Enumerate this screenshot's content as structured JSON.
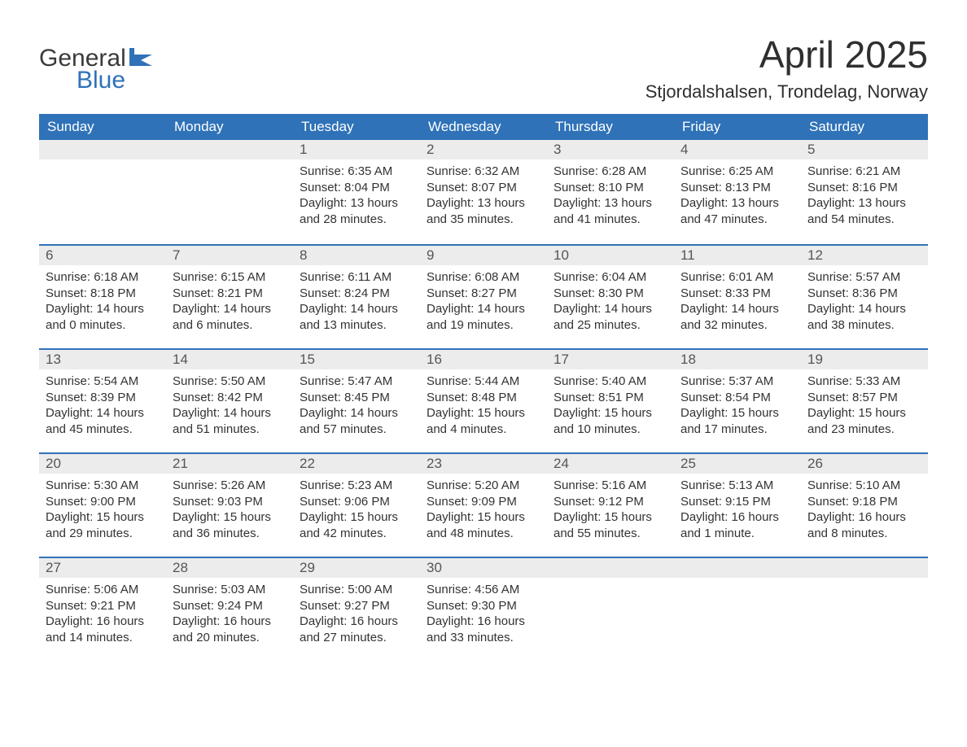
{
  "brand": {
    "word1": "General",
    "word2": "Blue",
    "logo_color": "#2f72b8"
  },
  "title": "April 2025",
  "location": "Stjordalshalsen, Trondelag, Norway",
  "colors": {
    "header_bg": "#2f72b8",
    "header_text": "#ffffff",
    "daynum_bg": "#ececec",
    "body_text": "#333333",
    "week_divider": "#2f72b8"
  },
  "typography": {
    "title_fontsize": 46,
    "location_fontsize": 22,
    "dow_fontsize": 17,
    "body_fontsize": 15
  },
  "days_of_week": [
    "Sunday",
    "Monday",
    "Tuesday",
    "Wednesday",
    "Thursday",
    "Friday",
    "Saturday"
  ],
  "weeks": [
    [
      null,
      null,
      {
        "n": "1",
        "sunrise": "Sunrise: 6:35 AM",
        "sunset": "Sunset: 8:04 PM",
        "daylight": "Daylight: 13 hours and 28 minutes."
      },
      {
        "n": "2",
        "sunrise": "Sunrise: 6:32 AM",
        "sunset": "Sunset: 8:07 PM",
        "daylight": "Daylight: 13 hours and 35 minutes."
      },
      {
        "n": "3",
        "sunrise": "Sunrise: 6:28 AM",
        "sunset": "Sunset: 8:10 PM",
        "daylight": "Daylight: 13 hours and 41 minutes."
      },
      {
        "n": "4",
        "sunrise": "Sunrise: 6:25 AM",
        "sunset": "Sunset: 8:13 PM",
        "daylight": "Daylight: 13 hours and 47 minutes."
      },
      {
        "n": "5",
        "sunrise": "Sunrise: 6:21 AM",
        "sunset": "Sunset: 8:16 PM",
        "daylight": "Daylight: 13 hours and 54 minutes."
      }
    ],
    [
      {
        "n": "6",
        "sunrise": "Sunrise: 6:18 AM",
        "sunset": "Sunset: 8:18 PM",
        "daylight": "Daylight: 14 hours and 0 minutes."
      },
      {
        "n": "7",
        "sunrise": "Sunrise: 6:15 AM",
        "sunset": "Sunset: 8:21 PM",
        "daylight": "Daylight: 14 hours and 6 minutes."
      },
      {
        "n": "8",
        "sunrise": "Sunrise: 6:11 AM",
        "sunset": "Sunset: 8:24 PM",
        "daylight": "Daylight: 14 hours and 13 minutes."
      },
      {
        "n": "9",
        "sunrise": "Sunrise: 6:08 AM",
        "sunset": "Sunset: 8:27 PM",
        "daylight": "Daylight: 14 hours and 19 minutes."
      },
      {
        "n": "10",
        "sunrise": "Sunrise: 6:04 AM",
        "sunset": "Sunset: 8:30 PM",
        "daylight": "Daylight: 14 hours and 25 minutes."
      },
      {
        "n": "11",
        "sunrise": "Sunrise: 6:01 AM",
        "sunset": "Sunset: 8:33 PM",
        "daylight": "Daylight: 14 hours and 32 minutes."
      },
      {
        "n": "12",
        "sunrise": "Sunrise: 5:57 AM",
        "sunset": "Sunset: 8:36 PM",
        "daylight": "Daylight: 14 hours and 38 minutes."
      }
    ],
    [
      {
        "n": "13",
        "sunrise": "Sunrise: 5:54 AM",
        "sunset": "Sunset: 8:39 PM",
        "daylight": "Daylight: 14 hours and 45 minutes."
      },
      {
        "n": "14",
        "sunrise": "Sunrise: 5:50 AM",
        "sunset": "Sunset: 8:42 PM",
        "daylight": "Daylight: 14 hours and 51 minutes."
      },
      {
        "n": "15",
        "sunrise": "Sunrise: 5:47 AM",
        "sunset": "Sunset: 8:45 PM",
        "daylight": "Daylight: 14 hours and 57 minutes."
      },
      {
        "n": "16",
        "sunrise": "Sunrise: 5:44 AM",
        "sunset": "Sunset: 8:48 PM",
        "daylight": "Daylight: 15 hours and 4 minutes."
      },
      {
        "n": "17",
        "sunrise": "Sunrise: 5:40 AM",
        "sunset": "Sunset: 8:51 PM",
        "daylight": "Daylight: 15 hours and 10 minutes."
      },
      {
        "n": "18",
        "sunrise": "Sunrise: 5:37 AM",
        "sunset": "Sunset: 8:54 PM",
        "daylight": "Daylight: 15 hours and 17 minutes."
      },
      {
        "n": "19",
        "sunrise": "Sunrise: 5:33 AM",
        "sunset": "Sunset: 8:57 PM",
        "daylight": "Daylight: 15 hours and 23 minutes."
      }
    ],
    [
      {
        "n": "20",
        "sunrise": "Sunrise: 5:30 AM",
        "sunset": "Sunset: 9:00 PM",
        "daylight": "Daylight: 15 hours and 29 minutes."
      },
      {
        "n": "21",
        "sunrise": "Sunrise: 5:26 AM",
        "sunset": "Sunset: 9:03 PM",
        "daylight": "Daylight: 15 hours and 36 minutes."
      },
      {
        "n": "22",
        "sunrise": "Sunrise: 5:23 AM",
        "sunset": "Sunset: 9:06 PM",
        "daylight": "Daylight: 15 hours and 42 minutes."
      },
      {
        "n": "23",
        "sunrise": "Sunrise: 5:20 AM",
        "sunset": "Sunset: 9:09 PM",
        "daylight": "Daylight: 15 hours and 48 minutes."
      },
      {
        "n": "24",
        "sunrise": "Sunrise: 5:16 AM",
        "sunset": "Sunset: 9:12 PM",
        "daylight": "Daylight: 15 hours and 55 minutes."
      },
      {
        "n": "25",
        "sunrise": "Sunrise: 5:13 AM",
        "sunset": "Sunset: 9:15 PM",
        "daylight": "Daylight: 16 hours and 1 minute."
      },
      {
        "n": "26",
        "sunrise": "Sunrise: 5:10 AM",
        "sunset": "Sunset: 9:18 PM",
        "daylight": "Daylight: 16 hours and 8 minutes."
      }
    ],
    [
      {
        "n": "27",
        "sunrise": "Sunrise: 5:06 AM",
        "sunset": "Sunset: 9:21 PM",
        "daylight": "Daylight: 16 hours and 14 minutes."
      },
      {
        "n": "28",
        "sunrise": "Sunrise: 5:03 AM",
        "sunset": "Sunset: 9:24 PM",
        "daylight": "Daylight: 16 hours and 20 minutes."
      },
      {
        "n": "29",
        "sunrise": "Sunrise: 5:00 AM",
        "sunset": "Sunset: 9:27 PM",
        "daylight": "Daylight: 16 hours and 27 minutes."
      },
      {
        "n": "30",
        "sunrise": "Sunrise: 4:56 AM",
        "sunset": "Sunset: 9:30 PM",
        "daylight": "Daylight: 16 hours and 33 minutes."
      },
      null,
      null,
      null
    ]
  ]
}
